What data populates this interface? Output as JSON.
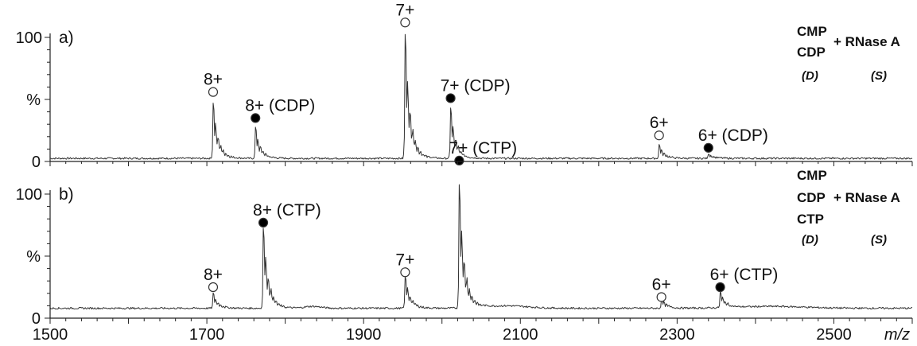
{
  "chart_data": [
    {
      "type": "line",
      "panel_label": "a)",
      "xlabel": "m/z",
      "ylabel": "%",
      "xlim": [
        1500,
        2600
      ],
      "ylim": [
        0,
        100
      ],
      "x_ticks": [
        1500,
        1700,
        1900,
        2100,
        2300,
        2500
      ],
      "y_ticks": [
        "0",
        "%",
        "100"
      ],
      "legend": {
        "left_lines": [
          "CMP",
          "CDP"
        ],
        "plus_text": "+ RNase A",
        "tags": [
          "(D)",
          "(S)"
        ]
      },
      "baseline": 2.5,
      "peaks": [
        {
          "x": 1708,
          "y": 45
        },
        {
          "x": 1762,
          "y": 25
        },
        {
          "x": 1953,
          "y": 100
        },
        {
          "x": 2011,
          "y": 41
        },
        {
          "x": 2277,
          "y": 11
        },
        {
          "x": 2340,
          "y": 4
        }
      ],
      "annotations": [
        {
          "text": "8+",
          "x": 1708,
          "y": 56,
          "marker": "open"
        },
        {
          "text": "8+ (CDP)",
          "x": 1762,
          "y": 35,
          "marker": "filled"
        },
        {
          "text": "7+",
          "x": 1953,
          "y": 112,
          "marker": "open"
        },
        {
          "text": "7+ (CDP)",
          "x": 2011,
          "y": 51,
          "marker": "filled"
        },
        {
          "text": "6+",
          "x": 2277,
          "y": 21,
          "marker": "open"
        },
        {
          "text": "6+ (CDP)",
          "x": 2340,
          "y": 11,
          "marker": "filled"
        }
      ]
    },
    {
      "type": "line",
      "panel_label": "b)",
      "xlabel": "m/z",
      "ylabel": "%",
      "xlim": [
        1500,
        2600
      ],
      "ylim": [
        0,
        100
      ],
      "x_ticks": [
        1500,
        1700,
        1900,
        2100,
        2300,
        2500
      ],
      "y_ticks": [
        "0",
        "%",
        "100"
      ],
      "legend": {
        "left_lines": [
          "CMP",
          "CDP",
          "CTP"
        ],
        "plus_text": "+ RNase A",
        "tags": [
          "(D)",
          "(S)"
        ]
      },
      "baseline": 8,
      "peaks": [
        {
          "x": 1708,
          "y": 12
        },
        {
          "x": 1772,
          "y": 65
        },
        {
          "x": 1953,
          "y": 26
        },
        {
          "x": 2022,
          "y": 100
        },
        {
          "x": 2280,
          "y": 8
        },
        {
          "x": 2355,
          "y": 13
        }
      ],
      "annotations": [
        {
          "text": "8+",
          "x": 1708,
          "y": 25,
          "marker": "open"
        },
        {
          "text": "8+ (CTP)",
          "x": 1772,
          "y": 77,
          "marker": "filled"
        },
        {
          "text": "7+",
          "x": 1953,
          "y": 37,
          "marker": "open"
        },
        {
          "text": "7+ (CTP)",
          "x": 2022,
          "y": 127,
          "marker": "filled"
        },
        {
          "text": "6+",
          "x": 2280,
          "y": 17,
          "marker": "open"
        },
        {
          "text": "6+ (CTP)",
          "x": 2355,
          "y": 25,
          "marker": "filled"
        }
      ]
    }
  ]
}
